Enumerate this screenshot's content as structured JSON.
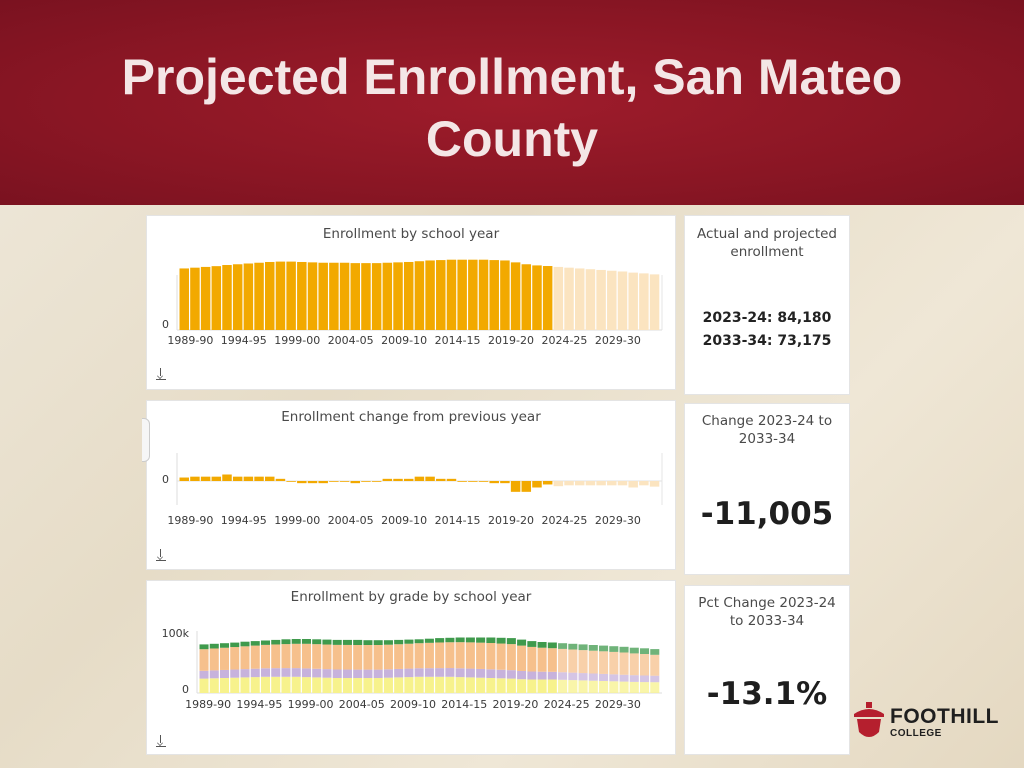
{
  "slide": {
    "title": "Projected Enrollment, San Mateo County"
  },
  "colors": {
    "header_red": "#8e1826",
    "bar_actual": "#f2a900",
    "bar_projected": "#fbe4c0"
  },
  "kpis": {
    "actual_projected": {
      "heading": "Actual and projected enrollment",
      "line1": "2023-24: 84,180",
      "line2": "2033-34: 73,175"
    },
    "change": {
      "heading": "Change 2023-24 to 2033-34",
      "value": "-11,005"
    },
    "pct_change": {
      "heading": "Pct Change 2023-24 to 2033-34",
      "value": "-13.1%"
    }
  },
  "chart_data": [
    {
      "type": "bar",
      "title": "Enrollment by school year",
      "ytick_labels": [
        "0"
      ],
      "xtick_labels": [
        "1989-90",
        "1994-95",
        "1999-00",
        "2004-05",
        "2009-10",
        "2014-15",
        "2019-20",
        "2024-25",
        "2029-30"
      ],
      "ylim": [
        0,
        100000
      ],
      "categories": [
        "1989-90",
        "1990-91",
        "1991-92",
        "1992-93",
        "1993-94",
        "1994-95",
        "1995-96",
        "1996-97",
        "1997-98",
        "1998-99",
        "1999-00",
        "2000-01",
        "2001-02",
        "2002-03",
        "2003-04",
        "2004-05",
        "2005-06",
        "2006-07",
        "2007-08",
        "2008-09",
        "2009-10",
        "2010-11",
        "2011-12",
        "2012-13",
        "2013-14",
        "2014-15",
        "2015-16",
        "2016-17",
        "2017-18",
        "2018-19",
        "2019-20",
        "2020-21",
        "2021-22",
        "2022-23",
        "2023-24",
        "2024-25",
        "2025-26",
        "2026-27",
        "2027-28",
        "2028-29",
        "2029-30",
        "2030-31",
        "2031-32",
        "2032-33",
        "2033-34"
      ],
      "values": [
        81000,
        82000,
        83000,
        84000,
        85500,
        86500,
        87500,
        88500,
        89500,
        90000,
        90000,
        89500,
        89000,
        88500,
        88500,
        88500,
        88000,
        88000,
        88000,
        88500,
        89000,
        89500,
        90500,
        91500,
        92000,
        92500,
        92500,
        92500,
        92500,
        92000,
        91500,
        89000,
        86500,
        85000,
        84180,
        83000,
        82000,
        81000,
        80000,
        79000,
        78000,
        77000,
        75500,
        74500,
        73175
      ],
      "projected_from": "2024-25",
      "series": [
        {
          "values_are": "actual through 2023-24, projected after"
        }
      ]
    },
    {
      "type": "bar",
      "title": "Enrollment change from previous year",
      "ytick_labels": [
        "0"
      ],
      "xtick_labels": [
        "1989-90",
        "1994-95",
        "1999-00",
        "2004-05",
        "2009-10",
        "2014-15",
        "2019-20",
        "2024-25",
        "2029-30"
      ],
      "ylim": [
        -6000,
        6000
      ],
      "categories": [
        "1989-90",
        "1990-91",
        "1991-92",
        "1992-93",
        "1993-94",
        "1994-95",
        "1995-96",
        "1996-97",
        "1997-98",
        "1998-99",
        "1999-00",
        "2000-01",
        "2001-02",
        "2002-03",
        "2003-04",
        "2004-05",
        "2005-06",
        "2006-07",
        "2007-08",
        "2008-09",
        "2009-10",
        "2010-11",
        "2011-12",
        "2012-13",
        "2013-14",
        "2014-15",
        "2015-16",
        "2016-17",
        "2017-18",
        "2018-19",
        "2019-20",
        "2020-21",
        "2021-22",
        "2022-23",
        "2023-24",
        "2024-25",
        "2025-26",
        "2026-27",
        "2027-28",
        "2028-29",
        "2029-30",
        "2030-31",
        "2031-32",
        "2032-33",
        "2033-34"
      ],
      "values": [
        800,
        1000,
        1000,
        1000,
        1500,
        1000,
        1000,
        1000,
        1000,
        500,
        0,
        -500,
        -500,
        -500,
        0,
        0,
        -500,
        0,
        0,
        500,
        500,
        500,
        1000,
        1000,
        500,
        500,
        0,
        0,
        0,
        -500,
        -500,
        -2500,
        -2500,
        -1500,
        -800,
        -1200,
        -1000,
        -1000,
        -1000,
        -1000,
        -1000,
        -1000,
        -1500,
        -1000,
        -1300
      ],
      "projected_from": "2024-25"
    },
    {
      "type": "area",
      "title": "Enrollment by grade by school year",
      "ytick_labels": [
        "100k",
        "0"
      ],
      "xtick_labels": [
        "1989-90",
        "1994-95",
        "1999-00",
        "2004-05",
        "2009-10",
        "2014-15",
        "2019-20",
        "2024-25",
        "2029-30"
      ],
      "ylim": [
        0,
        100000
      ],
      "categories": [
        "1989-90",
        "1990-91",
        "1991-92",
        "1992-93",
        "1993-94",
        "1994-95",
        "1995-96",
        "1996-97",
        "1997-98",
        "1998-99",
        "1999-00",
        "2000-01",
        "2001-02",
        "2002-03",
        "2003-04",
        "2004-05",
        "2005-06",
        "2006-07",
        "2007-08",
        "2008-09",
        "2009-10",
        "2010-11",
        "2011-12",
        "2012-13",
        "2013-14",
        "2014-15",
        "2015-16",
        "2016-17",
        "2017-18",
        "2018-19",
        "2019-20",
        "2020-21",
        "2021-22",
        "2022-23",
        "2023-24",
        "2024-25",
        "2025-26",
        "2026-27",
        "2027-28",
        "2028-29",
        "2029-30",
        "2030-31",
        "2031-32",
        "2032-33",
        "2033-34"
      ],
      "series": [
        {
          "color": "#f7f28c",
          "values": [
            24000,
            24500,
            25000,
            25500,
            26000,
            26500,
            27000,
            27000,
            27000,
            27000,
            26500,
            26000,
            25500,
            25000,
            25000,
            25000,
            25000,
            25000,
            25500,
            26000,
            26500,
            27000,
            27000,
            27000,
            27000,
            26500,
            26000,
            25500,
            25000,
            24500,
            24000,
            23000,
            22500,
            22500,
            22500,
            22000,
            21500,
            21000,
            20500,
            20000,
            19500,
            19000,
            18500,
            18200,
            18000
          ]
        },
        {
          "color": "#c7b2dc",
          "values": [
            13000,
            13200,
            13400,
            13600,
            13800,
            14000,
            14200,
            14400,
            14500,
            14500,
            14500,
            14400,
            14300,
            14200,
            14100,
            14000,
            14000,
            14000,
            14000,
            14100,
            14200,
            14300,
            14400,
            14500,
            14600,
            14700,
            14700,
            14600,
            14500,
            14300,
            14100,
            13700,
            13300,
            13000,
            12800,
            12600,
            12400,
            12200,
            12000,
            11800,
            11600,
            11400,
            11200,
            11000,
            10800
          ]
        },
        {
          "color": "#f6c08c",
          "values": [
            36000,
            36500,
            37000,
            37500,
            38000,
            38500,
            39000,
            39500,
            40000,
            40500,
            41000,
            41000,
            41000,
            41000,
            41000,
            41000,
            41000,
            41000,
            41000,
            41200,
            41400,
            41700,
            42200,
            42700,
            43000,
            43500,
            43700,
            43800,
            43800,
            43600,
            43400,
            42300,
            41000,
            40000,
            39380,
            38900,
            38600,
            38300,
            38000,
            37700,
            37400,
            37100,
            36300,
            35800,
            34875
          ]
        },
        {
          "color": "#3f9a4c",
          "values": [
            8000,
            7800,
            7600,
            7400,
            7700,
            7500,
            7300,
            7600,
            8000,
            8000,
            8000,
            8100,
            8200,
            8300,
            8400,
            8500,
            8000,
            8000,
            7500,
            7200,
            6900,
            6500,
            6900,
            7300,
            7400,
            7800,
            8100,
            8600,
            9200,
            9600,
            10000,
            10000,
            9700,
            9500,
            9500,
            9500,
            9500,
            9500,
            9500,
            9500,
            9500,
            9500,
            9500,
            9500,
            9500
          ]
        }
      ],
      "projected_from": "2024-25"
    }
  ]
}
